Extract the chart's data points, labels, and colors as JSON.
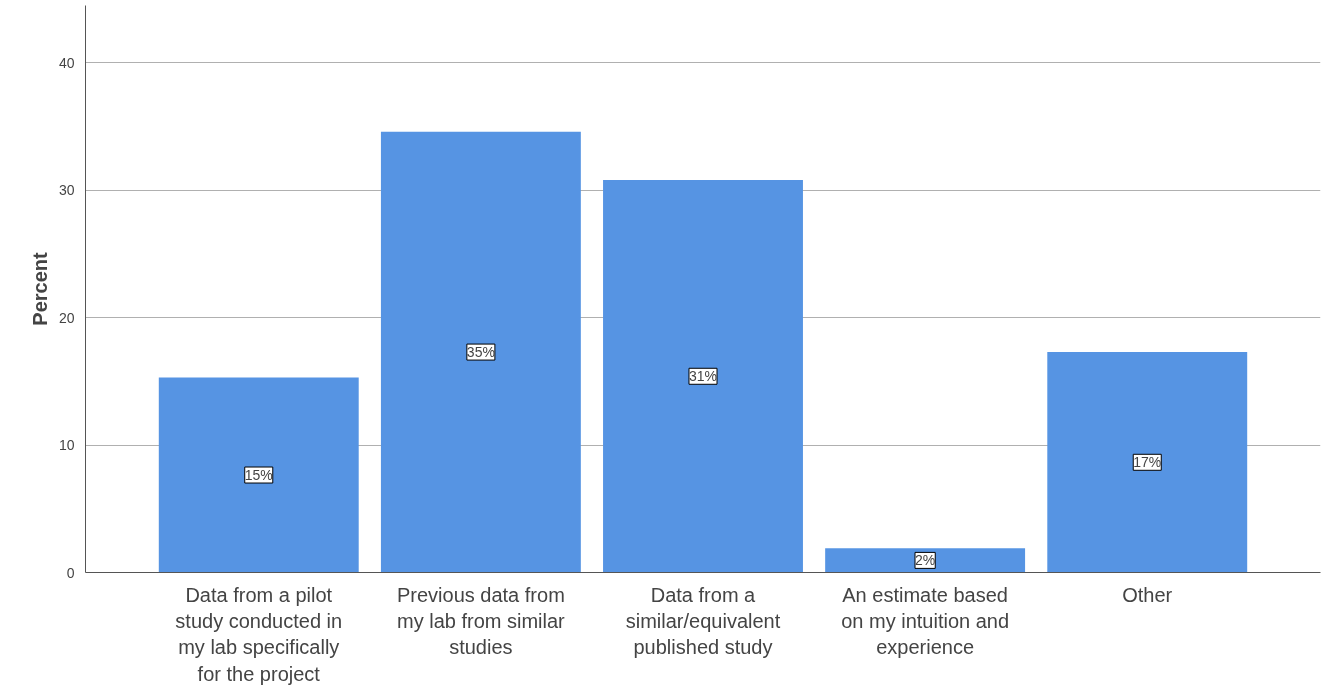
{
  "chart_data": {
    "type": "bar",
    "ylabel": "Percent",
    "categories": [
      "Data from a pilot study conducted in my lab specifically for the project",
      "Previous data from my lab from similar studies",
      "Data from a similar/equivalent published study",
      "An estimate based on my intuition and experience",
      "Other"
    ],
    "values": [
      15.3,
      34.6,
      30.8,
      1.9,
      17.3
    ],
    "value_labels": [
      "15%",
      "35%",
      "31%",
      "2%",
      "17%"
    ],
    "color": "#5694e3",
    "ylim": [
      0,
      44.5
    ],
    "yticks": [
      0,
      10,
      20,
      30,
      40
    ],
    "grid": "y"
  }
}
